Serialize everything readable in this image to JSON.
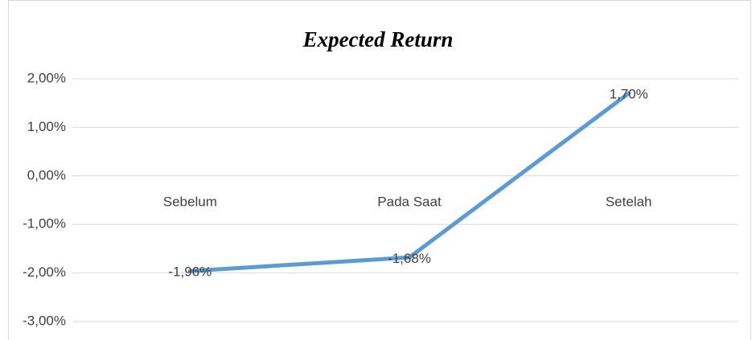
{
  "chart_data": {
    "type": "line",
    "title": "Expected Return",
    "categories": [
      "Sebelum",
      "Pada Saat",
      "Setelah"
    ],
    "series": [
      {
        "name": "Expected Return",
        "color": "#5b9bd5",
        "values": [
          -1.96,
          -1.68,
          1.7
        ],
        "value_labels": [
          "-1,96%",
          "-1,68%",
          "1,70%"
        ]
      }
    ],
    "ylim": [
      -3,
      2
    ],
    "yticks": [
      {
        "value": -3,
        "label": "-3,00%"
      },
      {
        "value": -2,
        "label": "-2,00%"
      },
      {
        "value": -1,
        "label": "-1,00%"
      },
      {
        "value": 0,
        "label": "0,00%"
      },
      {
        "value": 1,
        "label": "1,00%"
      },
      {
        "value": 2,
        "label": "2,00%"
      }
    ],
    "grid": true
  }
}
